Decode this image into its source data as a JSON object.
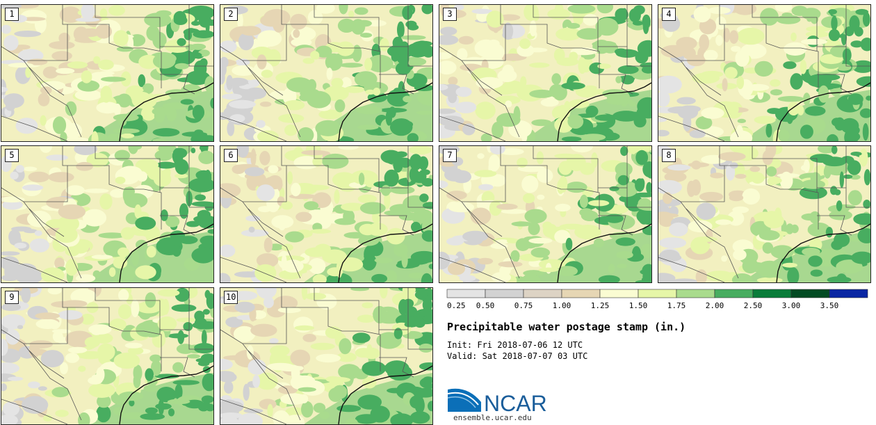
{
  "colors": {
    "background_land": "#f2f0c0",
    "ocean": "#a8d890",
    "border_line": "#555555",
    "coast_line": "#111111"
  },
  "chart_data": {
    "type": "heatmap",
    "title": "Precipitable water postage stamp (in.)",
    "init": "Init: Fri 2018-07-06 12 UTC",
    "valid": "Valid: Sat 2018-07-07 03 UTC",
    "units": "in.",
    "variable": "Precipitable water",
    "members": [
      "1",
      "2",
      "3",
      "4",
      "5",
      "6",
      "7",
      "8",
      "9",
      "10"
    ],
    "colorbar": {
      "bounds": [
        0.25,
        0.5,
        0.75,
        1.0,
        1.25,
        1.5,
        1.75,
        2.0,
        2.5,
        3.0,
        3.5
      ],
      "tick_labels": [
        "0.25",
        "0.50",
        "0.75",
        "1.00",
        "1.25",
        "1.50",
        "1.75",
        "2.00",
        "2.50",
        "3.00",
        "3.50"
      ],
      "colors": [
        "#e4e4e4",
        "#d2d2d2",
        "#ddd3c4",
        "#e6d6b4",
        "#fafcd2",
        "#e6f6a8",
        "#a9db8d",
        "#48ad60",
        "#097c3a",
        "#024b23",
        "#0a27a3"
      ]
    }
  },
  "branding": {
    "logo_text": "NCAR",
    "url": "ensemble.ucar.edu"
  }
}
